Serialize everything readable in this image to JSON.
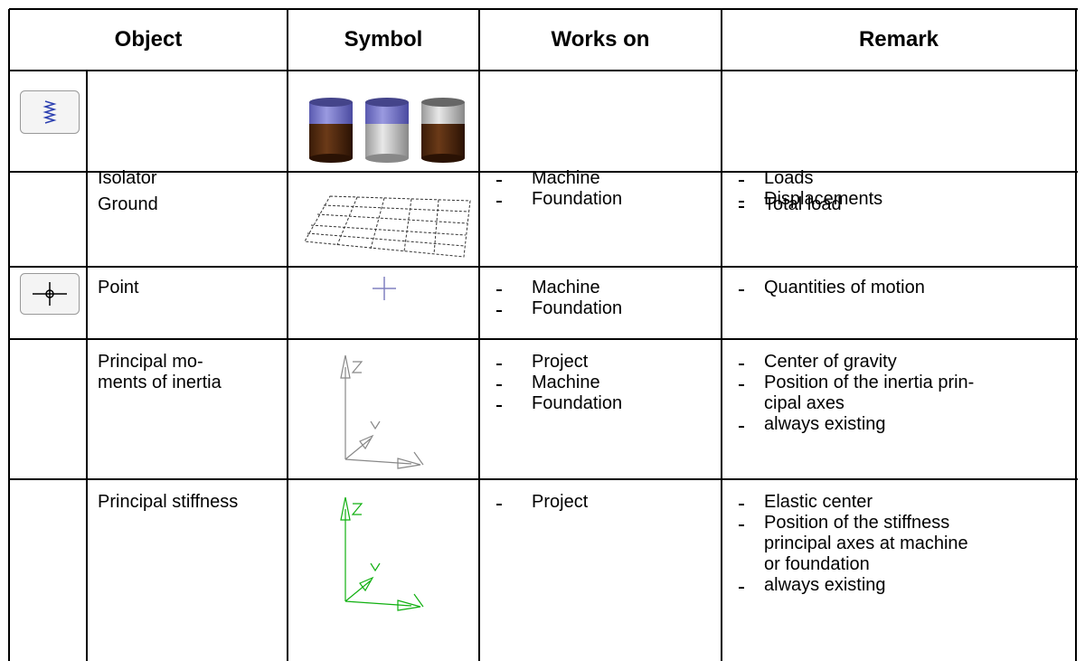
{
  "table": {
    "header": [
      "Object",
      "Symbol",
      "Works on",
      "Remark"
    ],
    "rows": [
      {
        "object": [
          "Isolator"
        ],
        "works_on": [
          "Machine",
          "Foundation"
        ],
        "remark": [
          [
            "Loads"
          ],
          [
            "Displacements"
          ]
        ]
      },
      {
        "object": [
          "Ground"
        ],
        "works_on": [],
        "remark": [
          [
            "Total load"
          ]
        ]
      },
      {
        "object": [
          "Point"
        ],
        "works_on": [
          "Machine",
          "Foundation"
        ],
        "remark": [
          [
            "Quantities of motion"
          ]
        ]
      },
      {
        "object": [
          "Principal mo-",
          "ments of inertia"
        ],
        "works_on": [
          "Project",
          "Machine",
          "Foundation"
        ],
        "remark": [
          [
            "Center of gravity"
          ],
          [
            "Position of the inertia prin-",
            "cipal axes"
          ],
          [
            "always existing"
          ]
        ]
      },
      {
        "object": [
          "Principal stiffness"
        ],
        "works_on": [
          "Project"
        ],
        "remark": [
          [
            "Elastic center"
          ],
          [
            "Position of the stiffness",
            "principal axes at machine",
            "or foundation"
          ],
          [
            "always existing"
          ]
        ]
      }
    ]
  }
}
